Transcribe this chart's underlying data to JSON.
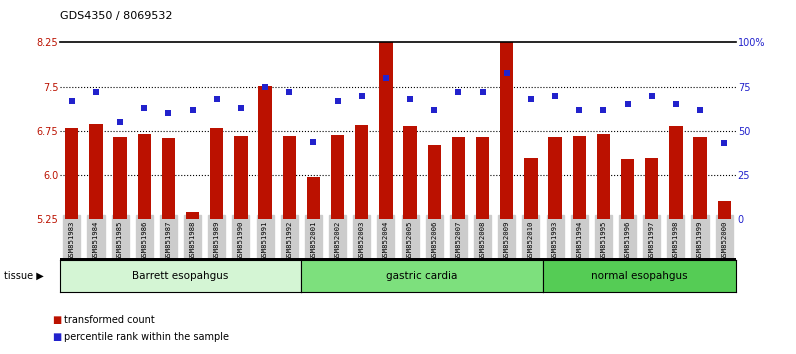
{
  "title": "GDS4350 / 8069532",
  "samples": [
    "GSM851983",
    "GSM851984",
    "GSM851985",
    "GSM851986",
    "GSM851987",
    "GSM851988",
    "GSM851989",
    "GSM851990",
    "GSM851991",
    "GSM851992",
    "GSM852001",
    "GSM852002",
    "GSM852003",
    "GSM852004",
    "GSM852005",
    "GSM852006",
    "GSM852007",
    "GSM852008",
    "GSM852009",
    "GSM852010",
    "GSM851993",
    "GSM851994",
    "GSM851995",
    "GSM851996",
    "GSM851997",
    "GSM851998",
    "GSM851999",
    "GSM852000"
  ],
  "bar_values": [
    6.8,
    6.87,
    6.65,
    6.7,
    6.63,
    5.37,
    6.8,
    6.67,
    7.52,
    6.67,
    5.97,
    6.68,
    6.85,
    8.3,
    6.83,
    6.52,
    6.65,
    6.65,
    8.45,
    6.3,
    6.65,
    6.67,
    6.7,
    6.28,
    6.3,
    6.83,
    6.65,
    5.57
  ],
  "dot_values": [
    67,
    72,
    55,
    63,
    60,
    62,
    68,
    63,
    75,
    72,
    44,
    67,
    70,
    80,
    68,
    62,
    72,
    72,
    83,
    68,
    70,
    62,
    62,
    65,
    70,
    65,
    62,
    43
  ],
  "groups": [
    {
      "label": "Barrett esopahgus",
      "start": 0,
      "end": 10,
      "color": "#d4f5d4"
    },
    {
      "label": "gastric cardia",
      "start": 10,
      "end": 20,
      "color": "#7de07d"
    },
    {
      "label": "normal esopahgus",
      "start": 20,
      "end": 28,
      "color": "#55cc55"
    }
  ],
  "ylim_left": [
    5.25,
    8.25
  ],
  "ylim_right": [
    0,
    100
  ],
  "yticks_left": [
    5.25,
    6.0,
    6.75,
    7.5,
    8.25
  ],
  "yticks_right": [
    0,
    25,
    50,
    75,
    100
  ],
  "ytick_labels_right": [
    "0",
    "25",
    "50",
    "75",
    "100%"
  ],
  "bar_color": "#bb1100",
  "dot_color": "#2222cc",
  "bar_bottom": 5.25,
  "tissue_label": "tissue",
  "legend_bar": "transformed count",
  "legend_dot": "percentile rank within the sample",
  "bg_color": "#ffffff",
  "tick_label_bg": "#cccccc"
}
